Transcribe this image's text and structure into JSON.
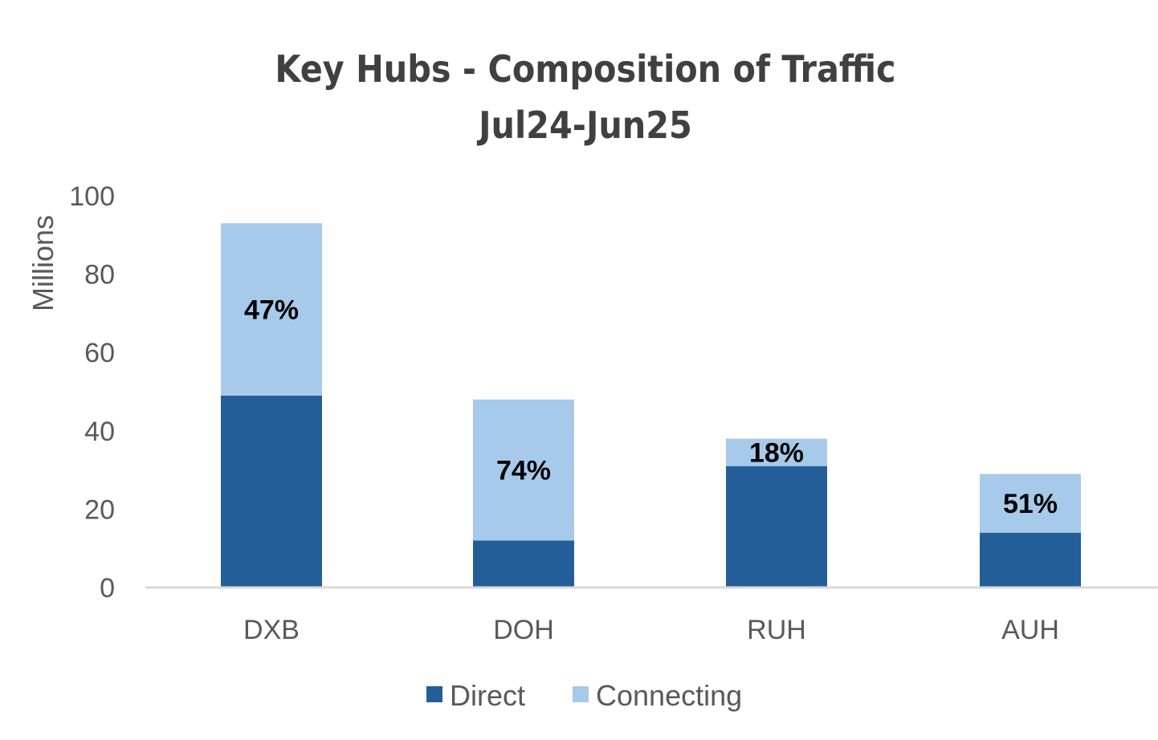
{
  "chart_data": {
    "type": "bar",
    "stacked": true,
    "title": "Key Hubs - Composition of Traffic",
    "subtitle": "Jul24-Jun25",
    "ylabel": "Millions",
    "xlabel": "",
    "ylim": [
      0,
      100
    ],
    "yticks": [
      0,
      20,
      40,
      60,
      80,
      100
    ],
    "ytick_labels": [
      "0",
      "20",
      "40",
      "60",
      "80",
      "100"
    ],
    "categories": [
      "DXB",
      "DOH",
      "RUH",
      "AUH"
    ],
    "series": [
      {
        "name": "Direct",
        "color": "#245e98",
        "values": [
          49,
          12,
          31,
          14
        ]
      },
      {
        "name": "Connecting",
        "color": "#a7caea",
        "values": [
          44,
          36,
          7,
          15
        ]
      }
    ],
    "data_labels": [
      "47%",
      "74%",
      "18%",
      "51%"
    ],
    "legend_position": "bottom",
    "gridlines": false,
    "axis_color": "#d9d9d9"
  }
}
